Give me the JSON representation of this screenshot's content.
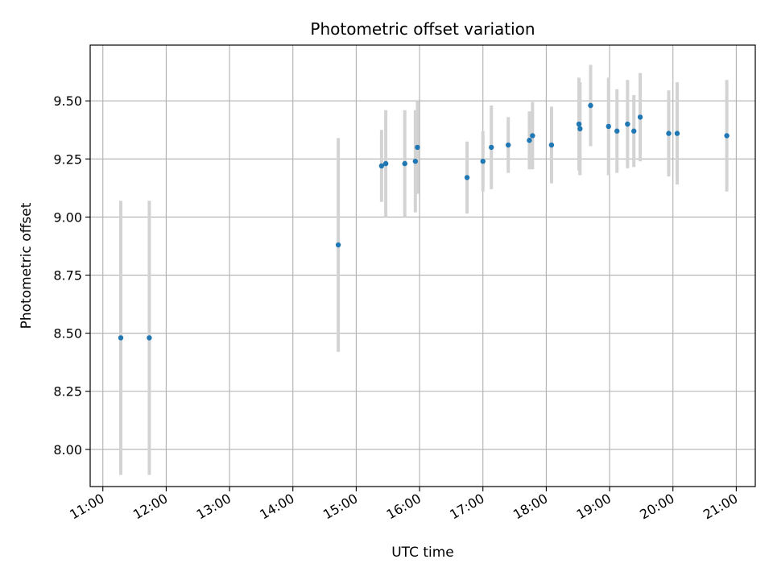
{
  "chart_data": {
    "type": "scatter",
    "title": "Photometric offset variation",
    "xlabel": "UTC time",
    "ylabel": "Photometric offset",
    "xlim": [
      "10:48",
      "21:18"
    ],
    "ylim": [
      7.84,
      9.74
    ],
    "x_ticks": [
      "11:00",
      "12:00",
      "13:00",
      "14:00",
      "15:00",
      "16:00",
      "17:00",
      "18:00",
      "19:00",
      "20:00",
      "21:00"
    ],
    "y_ticks": [
      "8.00",
      "8.25",
      "8.50",
      "8.75",
      "9.00",
      "9.25",
      "9.50"
    ],
    "grid": true,
    "legend": "none",
    "colors": {
      "marker": "#1f77b4",
      "errorbar": "#d3d3d3",
      "grid": "#b0b0b0"
    },
    "points": [
      {
        "time": "11:17",
        "value": 8.48,
        "error": 0.59
      },
      {
        "time": "11:44",
        "value": 8.48,
        "error": 0.59
      },
      {
        "time": "14:43",
        "value": 8.88,
        "error": 0.46
      },
      {
        "time": "15:24",
        "value": 9.22,
        "error": 0.155
      },
      {
        "time": "15:28",
        "value": 9.23,
        "error": 0.23
      },
      {
        "time": "15:46",
        "value": 9.23,
        "error": 0.23
      },
      {
        "time": "15:56",
        "value": 9.24,
        "error": 0.22
      },
      {
        "time": "15:58",
        "value": 9.3,
        "error": 0.2
      },
      {
        "time": "16:45",
        "value": 9.17,
        "error": 0.155
      },
      {
        "time": "17:00",
        "value": 9.24,
        "error": 0.13
      },
      {
        "time": "17:08",
        "value": 9.3,
        "error": 0.18
      },
      {
        "time": "17:24",
        "value": 9.31,
        "error": 0.12
      },
      {
        "time": "17:44",
        "value": 9.33,
        "error": 0.125
      },
      {
        "time": "17:47",
        "value": 9.35,
        "error": 0.145
      },
      {
        "time": "18:05",
        "value": 9.31,
        "error": 0.165
      },
      {
        "time": "18:31",
        "value": 9.4,
        "error": 0.2
      },
      {
        "time": "18:32",
        "value": 9.38,
        "error": 0.2
      },
      {
        "time": "18:42",
        "value": 9.48,
        "error": 0.175
      },
      {
        "time": "18:59",
        "value": 9.39,
        "error": 0.21
      },
      {
        "time": "19:07",
        "value": 9.37,
        "error": 0.18
      },
      {
        "time": "19:17",
        "value": 9.4,
        "error": 0.19
      },
      {
        "time": "19:23",
        "value": 9.37,
        "error": 0.155
      },
      {
        "time": "19:29",
        "value": 9.43,
        "error": 0.19
      },
      {
        "time": "19:56",
        "value": 9.36,
        "error": 0.185
      },
      {
        "time": "20:04",
        "value": 9.36,
        "error": 0.22
      },
      {
        "time": "20:51",
        "value": 9.35,
        "error": 0.24
      }
    ]
  }
}
